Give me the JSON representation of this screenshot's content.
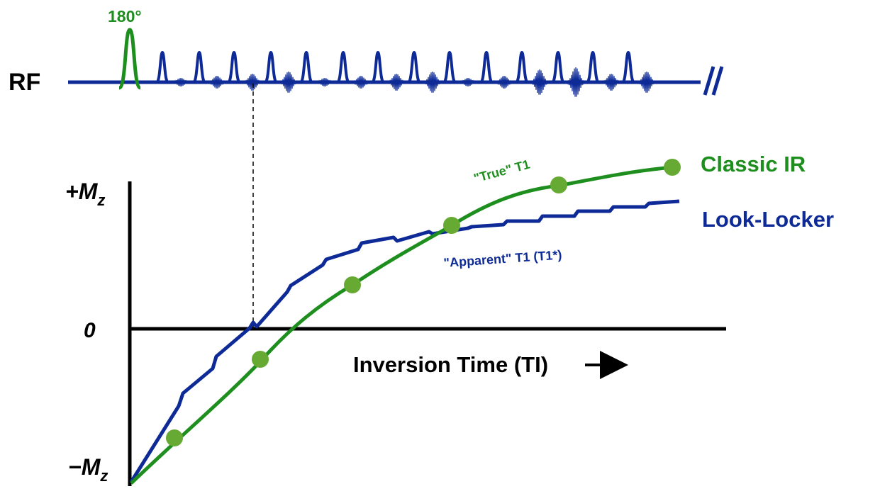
{
  "rf": {
    "label": "RF",
    "pulse_label": "180°",
    "break_mark": "//"
  },
  "axes": {
    "y_top": "+M",
    "y_top_sub": "z",
    "y_zero": "0",
    "y_bottom": "−M",
    "y_bottom_sub": "z",
    "x_label": "Inversion Time (TI)"
  },
  "curves": {
    "classic": {
      "label": "Classic IR",
      "annotation": "\"True\" T1"
    },
    "look_locker": {
      "label": "Look-Locker",
      "annotation": "\"Apparent\" T1 (T1*)"
    }
  },
  "colors": {
    "green": "#1e8f1e",
    "green_dot": "#66aa33",
    "blue": "#0d2a96",
    "black": "#000000"
  }
}
